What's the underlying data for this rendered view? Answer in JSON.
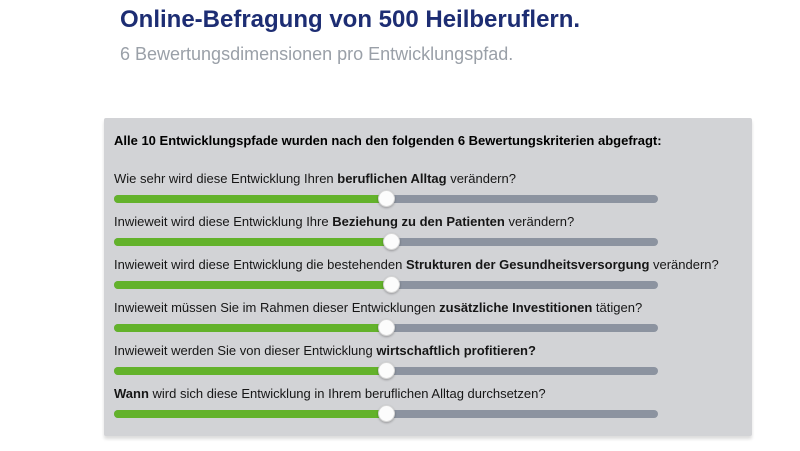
{
  "page": {
    "title": "Online-Befragung von 500 Heilberuflern.",
    "subtitle": "6 Bewertungsdimensionen pro Entwicklungspfad."
  },
  "colors": {
    "title": "#1d2d73",
    "subtitle": "#9aa0a8",
    "panel_bg": "#d2d3d6",
    "slider_green": "#63b22b",
    "slider_track": "#8c93a0",
    "slider_handle": "#fcfcfc"
  },
  "panel": {
    "header": "Alle 10 Entwicklungspfade wurden nach den folgenden 6 Bewertungskriterien abgefragt:",
    "questions": [
      {
        "segments": [
          {
            "t": "Wie sehr wird diese Entwicklung Ihren ",
            "b": false
          },
          {
            "t": "beruflichen Alltag",
            "b": true
          },
          {
            "t": " verändern?",
            "b": false
          }
        ],
        "slider_percent": 50
      },
      {
        "segments": [
          {
            "t": "Inwieweit wird diese Entwicklung Ihre ",
            "b": false
          },
          {
            "t": "Beziehung zu den Patienten",
            "b": true
          },
          {
            "t": " verändern?",
            "b": false
          }
        ],
        "slider_percent": 51
      },
      {
        "segments": [
          {
            "t": "Inwieweit wird diese Entwicklung die bestehenden ",
            "b": false
          },
          {
            "t": "Strukturen der Gesundheitsversorgung",
            "b": true
          },
          {
            "t": " verändern?",
            "b": false
          }
        ],
        "slider_percent": 51
      },
      {
        "segments": [
          {
            "t": "Inwieweit müssen Sie im Rahmen dieser Entwicklungen ",
            "b": false
          },
          {
            "t": "zusätzliche Investitionen",
            "b": true
          },
          {
            "t": " tätigen?",
            "b": false
          }
        ],
        "slider_percent": 50
      },
      {
        "segments": [
          {
            "t": "Inwieweit werden Sie von dieser Entwicklung ",
            "b": false
          },
          {
            "t": "wirtschaftlich profitieren?",
            "b": true
          }
        ],
        "slider_percent": 50
      },
      {
        "segments": [
          {
            "t": "Wann",
            "b": true
          },
          {
            "t": " wird sich diese Entwicklung in Ihrem beruflichen Alltag durchsetzen?",
            "b": false
          }
        ],
        "slider_percent": 50
      }
    ]
  }
}
